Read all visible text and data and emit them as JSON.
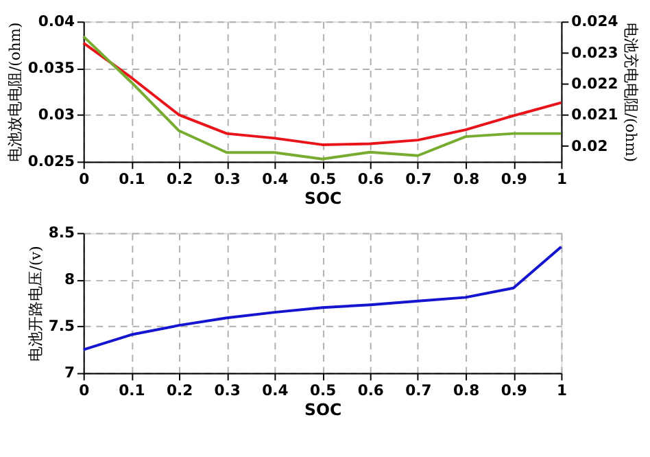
{
  "chart_data": [
    {
      "type": "line",
      "xlabel": "SOC",
      "ylabel": "电池放电电阻/(ohm)",
      "y2label": "电池充电电阻/(ohm)",
      "x": [
        0,
        0.1,
        0.2,
        0.3,
        0.4,
        0.5,
        0.6,
        0.7,
        0.8,
        0.9,
        1
      ],
      "series": [
        {
          "color": "#e8141a",
          "values": [
            0.0377,
            0.034,
            0.03,
            0.028,
            0.0275,
            0.0268,
            0.0269,
            0.0273,
            0.0284,
            0.0299,
            0.0313
          ]
        },
        {
          "color": "#77ac30",
          "axis": "y2",
          "values": [
            0.02352,
            0.02205,
            0.02049,
            0.01979,
            0.01979,
            0.01958,
            0.0198,
            0.01969,
            0.0203,
            0.0204,
            0.0204
          ]
        }
      ],
      "xlim": [
        0,
        1
      ],
      "xticks": [
        0,
        0.1,
        0.2,
        0.3,
        0.4,
        0.5,
        0.6,
        0.7,
        0.8,
        0.9,
        1
      ],
      "ylim": [
        0.025,
        0.04
      ],
      "yticks": [
        0.025,
        0.03,
        0.035,
        0.04
      ],
      "y2lim": [
        0.0195,
        0.024
      ],
      "y2ticks": [
        0.02,
        0.021,
        0.022,
        0.023,
        0.024
      ],
      "grid": true,
      "line_style": "solid",
      "marker": "none"
    },
    {
      "type": "line",
      "xlabel": "SOC",
      "ylabel": "电池开路电压/(v)",
      "x": [
        0,
        0.1,
        0.2,
        0.3,
        0.4,
        0.5,
        0.6,
        0.7,
        0.8,
        0.9,
        1
      ],
      "series": [
        {
          "color": "#1515d0",
          "values": [
            7.25,
            7.41,
            7.51,
            7.59,
            7.65,
            7.7,
            7.73,
            7.77,
            7.81,
            7.91,
            8.35
          ]
        }
      ],
      "xlim": [
        0,
        1
      ],
      "xticks": [
        0,
        0.1,
        0.2,
        0.3,
        0.4,
        0.5,
        0.6,
        0.7,
        0.8,
        0.9,
        1
      ],
      "ylim": [
        7,
        8.5
      ],
      "yticks": [
        7,
        7.5,
        8,
        8.5
      ],
      "grid": true,
      "line_style": "solid",
      "marker": "none"
    }
  ]
}
